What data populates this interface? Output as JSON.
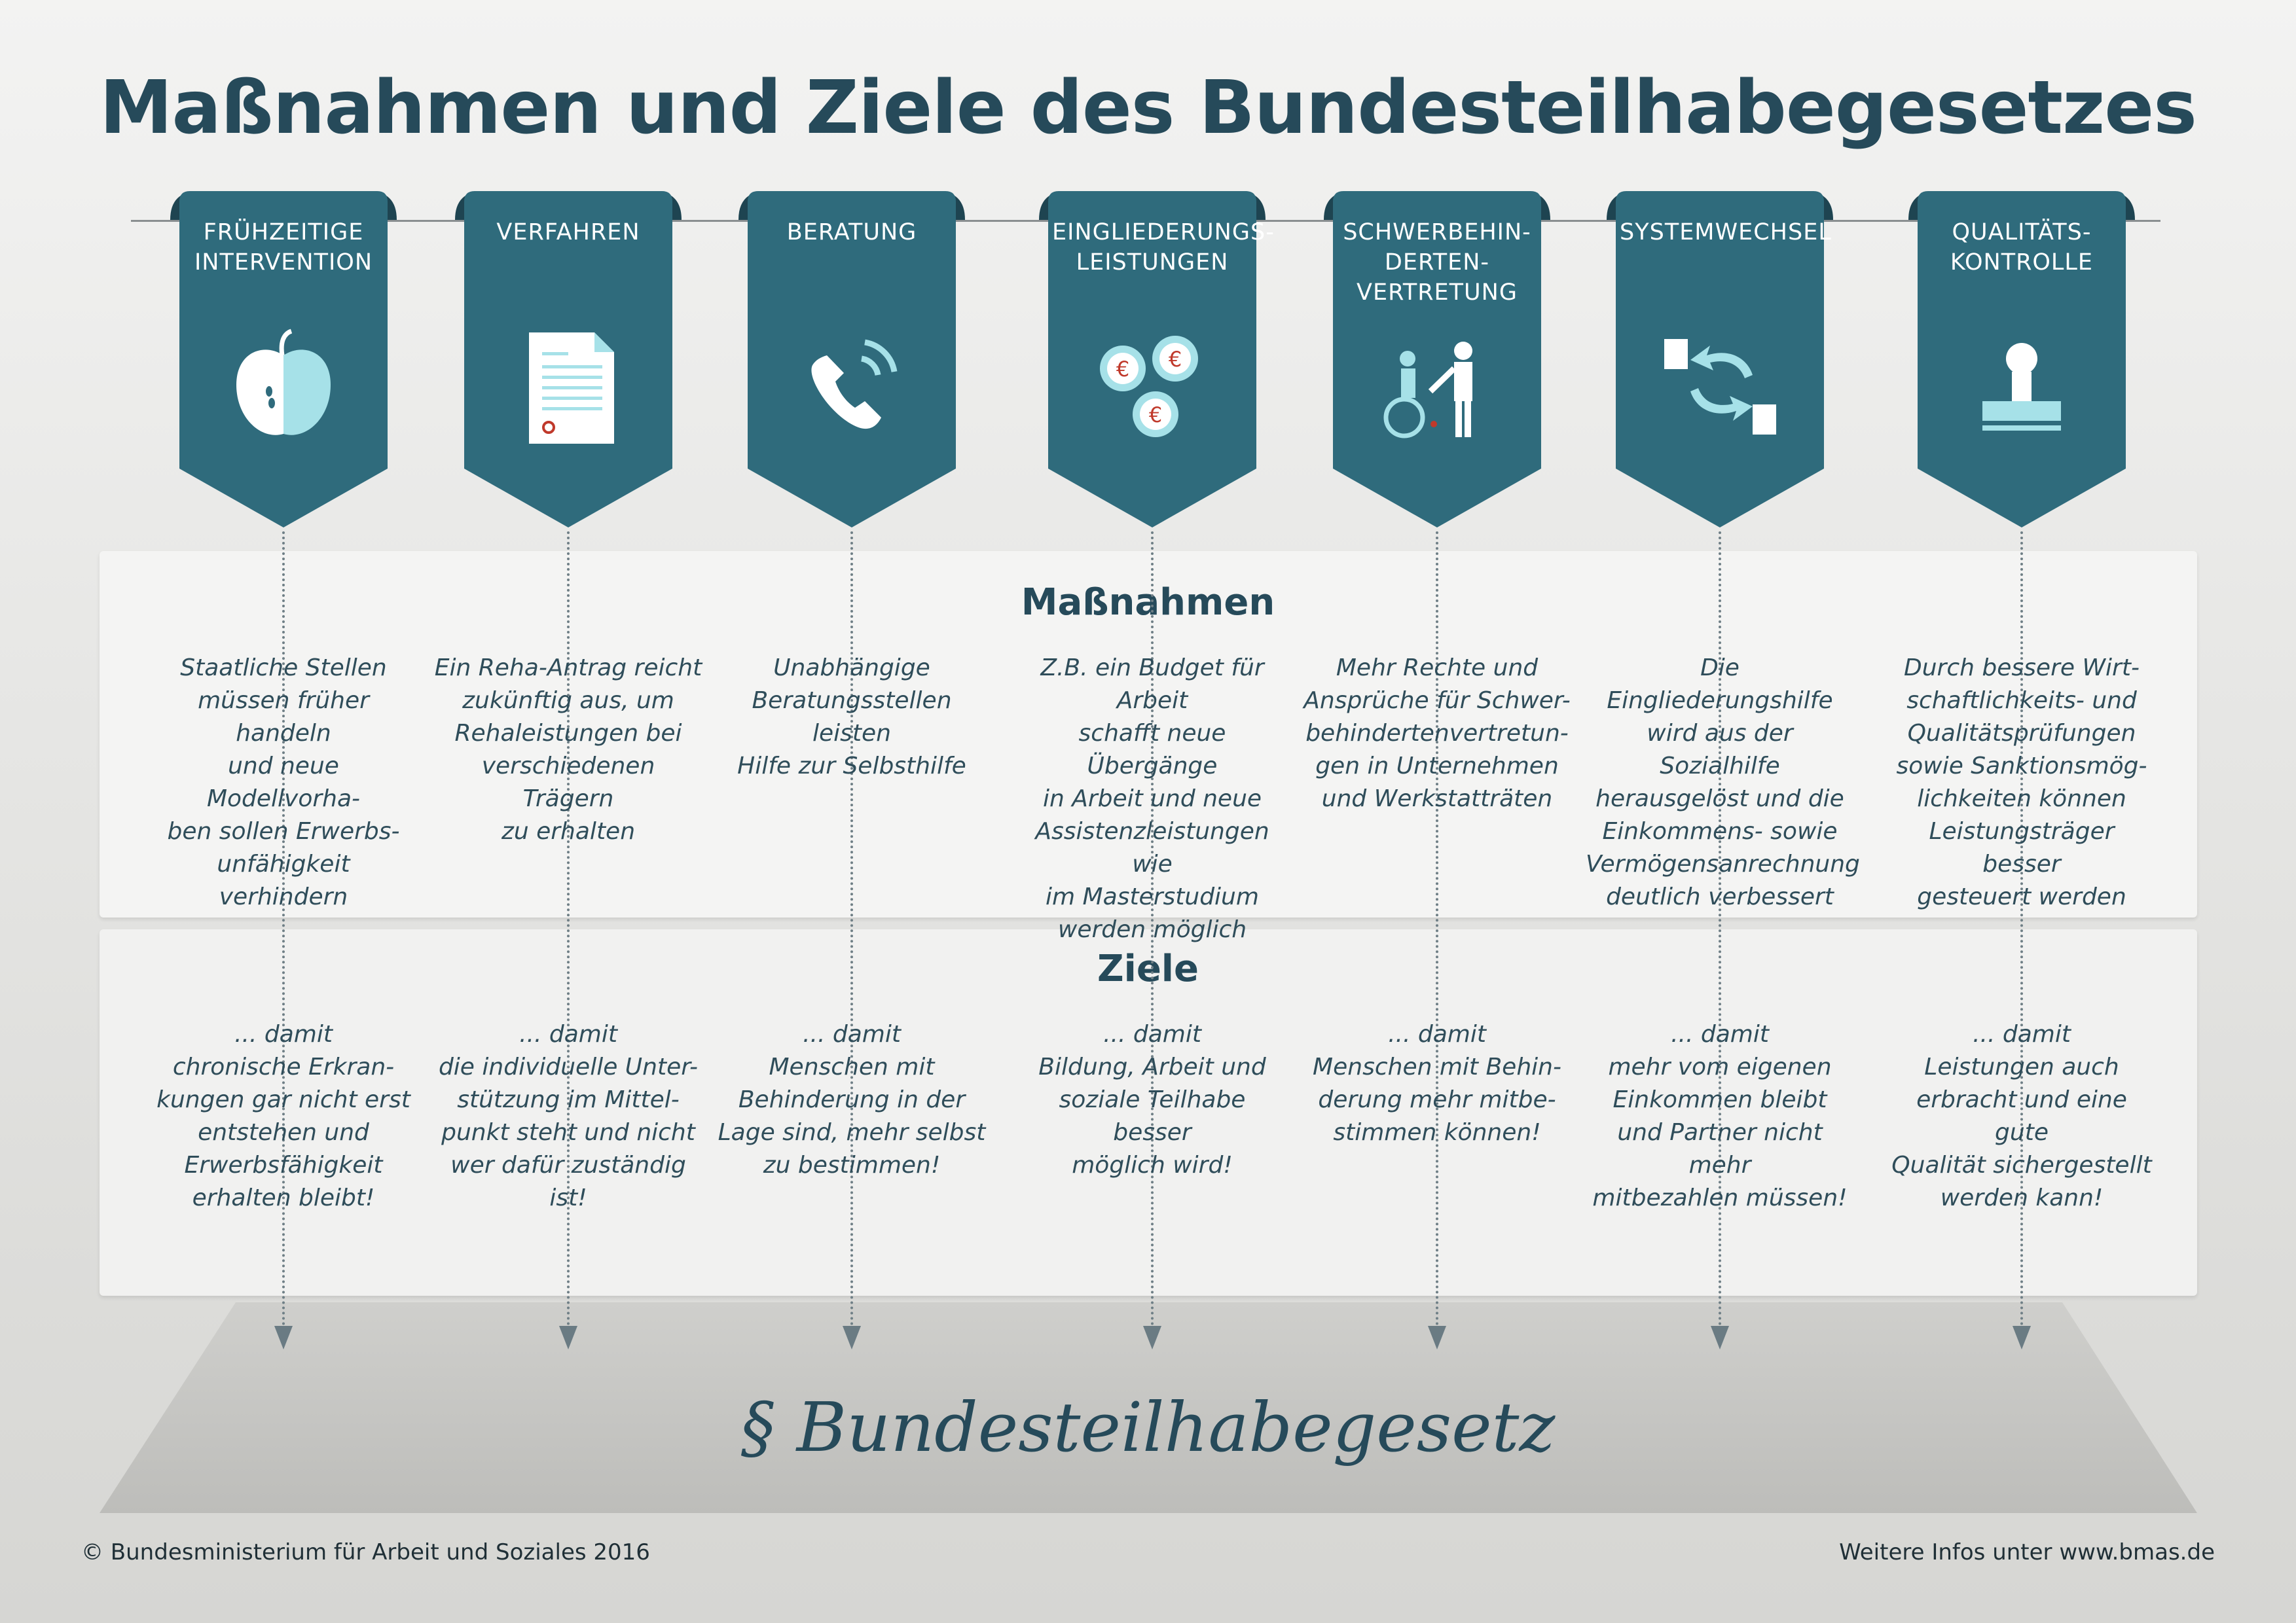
{
  "title": "Maßnahmen und Ziele des Bundesteilhabegesetzes",
  "colors": {
    "banner": "#2f6b7c",
    "banner_dark": "#1e4451",
    "icon_light": "#a6e1e8",
    "icon_white": "#ffffff",
    "accent_red": "#c0392b",
    "heading": "#264a5a"
  },
  "sections": {
    "massnahmen_heading": "Maßnahmen",
    "ziele_heading": "Ziele"
  },
  "columns": [
    {
      "label": "FRÜHZEITIGE\nINTERVENTION",
      "icon": "apple-icon",
      "massnahme": "Staatliche Stellen\nmüssen früher handeln\nund neue Modellvorha-\nben sollen Erwerbs-\nunfähigkeit verhindern",
      "ziel": "... damit\nchronische Erkran-\nkungen gar nicht erst\nentstehen und\nErwerbsfähigkeit\nerhalten bleibt!"
    },
    {
      "label": "VERFAHREN",
      "icon": "document-icon",
      "massnahme": "Ein Reha-Antrag reicht\nzukünftig aus, um\nRehaleistungen bei\nverschiedenen Trägern\nzu erhalten",
      "ziel": "... damit\ndie individuelle Unter-\nstützung im Mittel-\npunkt steht und nicht\nwer dafür zuständig ist!"
    },
    {
      "label": "BERATUNG",
      "icon": "phone-icon",
      "massnahme": "Unabhängige\nBeratungsstellen leisten\nHilfe zur Selbsthilfe",
      "ziel": "... damit\nMenschen mit\nBehinderung in der\nLage sind, mehr selbst\nzu bestimmen!"
    },
    {
      "label": "EINGLIEDERUNGS-\nLEISTUNGEN",
      "icon": "euro-coins-icon",
      "massnahme": "Z.B. ein Budget für Arbeit\nschafft neue Übergänge\nin Arbeit und neue\nAssistenzleistungen wie\nim Masterstudium\nwerden möglich",
      "ziel": "... damit\nBildung, Arbeit und\nsoziale Teilhabe besser\nmöglich wird!"
    },
    {
      "label": "SCHWERBEHIN-\nDERTEN-\nVERTRETUNG",
      "icon": "wheelchair-people-icon",
      "massnahme": "Mehr Rechte und\nAnsprüche für Schwer-\nbehindertenvertretun-\ngen in Unternehmen\nund Werkstatträten",
      "ziel": "... damit\nMenschen mit Behin-\nderung mehr mitbe-\nstimmen können!"
    },
    {
      "label": "SYSTEMWECHSEL",
      "icon": "exchange-arrows-icon",
      "massnahme": "Die Eingliederungshilfe\nwird aus der Sozialhilfe\nherausgelöst und die\nEinkommens- sowie\nVermögensanrechnung\ndeutlich verbessert",
      "ziel": "... damit\nmehr vom eigenen\nEinkommen bleibt\nund Partner nicht mehr\nmitbezahlen müssen!"
    },
    {
      "label": "QUALITÄTS-\nKONTROLLE",
      "icon": "stamp-icon",
      "massnahme": "Durch bessere Wirt-\nschaftlichkeits- und\nQualitätsprüfungen\nsowie Sanktionsmög-\nlichkeiten können\nLeistungsträger besser\ngesteuert werden",
      "ziel": "... damit\nLeistungen auch\nerbracht und eine gute\nQualität sichergestellt\nwerden kann!"
    }
  ],
  "foundation_label": "§ Bundesteilhabegesetz",
  "footer": {
    "copyright": "© Bundesministerium für Arbeit und Soziales 2016",
    "more_info": "Weitere Infos unter www.bmas.de"
  }
}
